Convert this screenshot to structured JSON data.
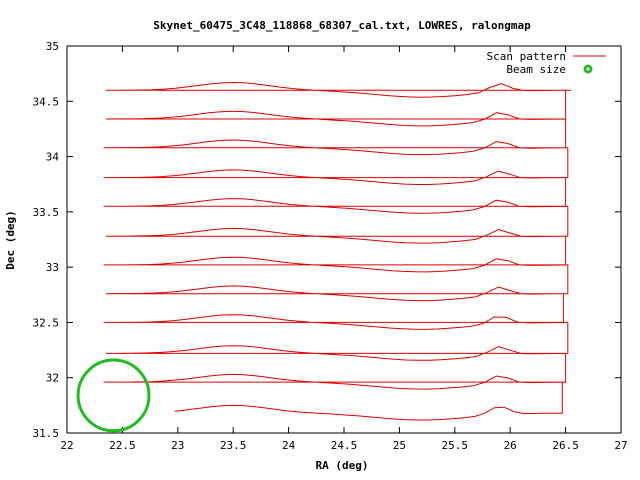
{
  "chart_data": {
    "type": "line",
    "title": "Skynet_60475_3C48_118868_68307_cal.txt, LOWRES, ralongmap",
    "xlabel": "RA (deg)",
    "ylabel": "Dec (deg)",
    "xlim": [
      22,
      27
    ],
    "ylim": [
      31.5,
      35
    ],
    "xticks": [
      22,
      22.5,
      23,
      23.5,
      24,
      24.5,
      25,
      25.5,
      26,
      26.5,
      27
    ],
    "yticks": [
      31.5,
      32,
      32.5,
      33,
      33.5,
      34,
      34.5,
      35
    ],
    "xtick_labels": [
      "22",
      "22.5",
      "23",
      "23.5",
      "24",
      "24.5",
      "25",
      "25.5",
      "26",
      "26.5",
      "27"
    ],
    "ytick_labels": [
      "31.5",
      "32",
      "32.5",
      "33",
      "33.5",
      "34",
      "34.5",
      "35"
    ],
    "grid": false,
    "legend_position": "top-right",
    "series": [
      {
        "name": "Scan pattern",
        "color": "#dd0000",
        "sweeps": [
          {
            "dec_left": 31.68,
            "dec_right": 31.68,
            "x_start": 22.97,
            "x_end": 26.47
          },
          {
            "dec_left": 31.96,
            "dec_right": 31.96,
            "x_start": 22.33,
            "x_end": 26.5
          },
          {
            "dec_left": 32.22,
            "dec_right": 32.22,
            "x_start": 22.35,
            "x_end": 26.52
          },
          {
            "dec_left": 32.5,
            "dec_right": 32.5,
            "x_start": 22.33,
            "x_end": 26.48
          },
          {
            "dec_left": 32.76,
            "dec_right": 32.76,
            "x_start": 22.35,
            "x_end": 26.52
          },
          {
            "dec_left": 33.02,
            "dec_right": 33.02,
            "x_start": 22.33,
            "x_end": 26.5
          },
          {
            "dec_left": 33.28,
            "dec_right": 33.28,
            "x_start": 22.35,
            "x_end": 26.52
          },
          {
            "dec_left": 33.55,
            "dec_right": 33.55,
            "x_start": 22.33,
            "x_end": 26.5
          },
          {
            "dec_left": 33.81,
            "dec_right": 33.81,
            "x_start": 22.33,
            "x_end": 26.52
          },
          {
            "dec_left": 34.08,
            "dec_right": 34.08,
            "x_start": 22.33,
            "x_end": 26.5
          },
          {
            "dec_left": 34.34,
            "dec_right": 34.34,
            "x_start": 22.35,
            "x_end": 26.5
          },
          {
            "dec_left": 34.6,
            "dec_right": 34.6,
            "x_start": 22.35,
            "x_end": 26.55
          }
        ]
      },
      {
        "name": "Beam size",
        "color": "#22bb22",
        "center": [
          22.42,
          31.84
        ],
        "radius_x_deg": 0.32,
        "radius_y_deg": 0.32
      }
    ]
  }
}
